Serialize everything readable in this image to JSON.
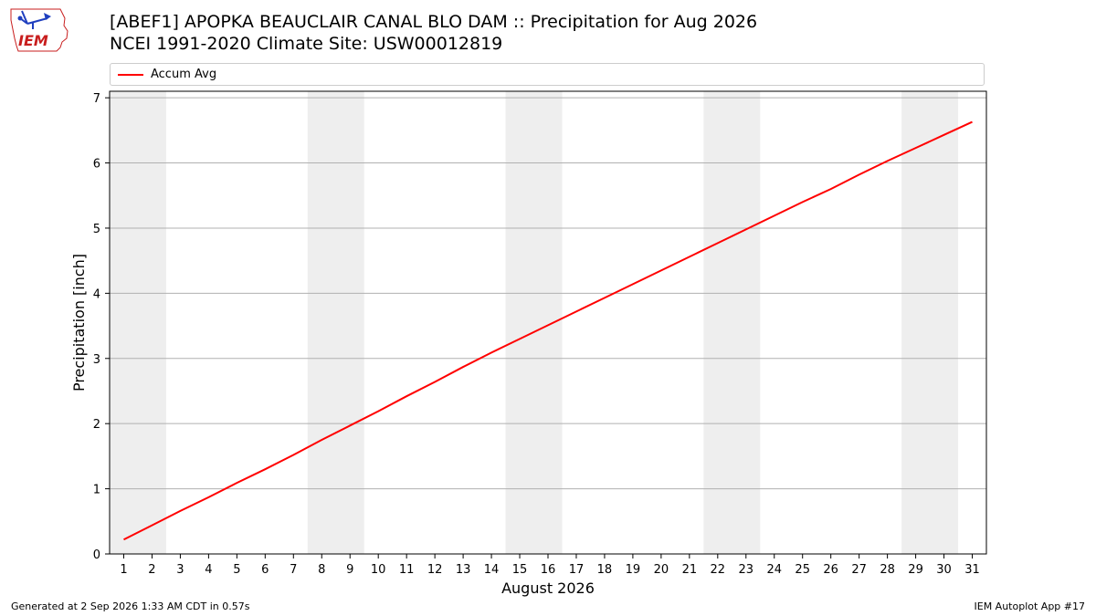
{
  "header": {
    "logo_text": "IEM",
    "title_line1": "[ABEF1] APOPKA BEAUCLAIR CANAL BLO DAM :: Precipitation for Aug 2026",
    "title_line2": "NCEI 1991-2020 Climate Site: USW00012819"
  },
  "footer": {
    "generated": "Generated at 2 Sep 2026 1:33 AM CDT in 0.57s",
    "app": "IEM Autoplot App #17"
  },
  "chart_data": {
    "type": "line",
    "title": "[ABEF1] APOPKA BEAUCLAIR CANAL BLO DAM :: Precipitation for Aug 2026",
    "subtitle": "NCEI 1991-2020 Climate Site: USW00012819",
    "xlabel": "August 2026",
    "ylabel": "Precipitation [inch]",
    "xlim": [
      0.5,
      31.5
    ],
    "ylim": [
      0,
      7.1
    ],
    "yticks": [
      0,
      1,
      2,
      3,
      4,
      5,
      6,
      7
    ],
    "xticks": [
      1,
      2,
      3,
      4,
      5,
      6,
      7,
      8,
      9,
      10,
      11,
      12,
      13,
      14,
      15,
      16,
      17,
      18,
      19,
      20,
      21,
      22,
      23,
      24,
      25,
      26,
      27,
      28,
      29,
      30,
      31
    ],
    "grid": "horizontal",
    "legend_position": "top",
    "weekend_shading": [
      [
        1,
        2
      ],
      [
        8,
        9
      ],
      [
        15,
        16
      ],
      [
        22,
        23
      ],
      [
        29,
        30
      ]
    ],
    "weekend_color": "#eeeeee",
    "series": [
      {
        "name": "Accum Avg",
        "color": "#ff0000",
        "x": [
          1,
          2,
          3,
          4,
          5,
          6,
          7,
          8,
          9,
          10,
          11,
          12,
          13,
          14,
          15,
          16,
          17,
          18,
          19,
          20,
          21,
          22,
          23,
          24,
          25,
          26,
          27,
          28,
          29,
          30,
          31
        ],
        "values": [
          0.22,
          0.44,
          0.66,
          0.87,
          1.09,
          1.3,
          1.52,
          1.75,
          1.97,
          2.19,
          2.42,
          2.64,
          2.87,
          3.09,
          3.3,
          3.51,
          3.72,
          3.93,
          4.14,
          4.35,
          4.56,
          4.77,
          4.98,
          5.19,
          5.4,
          5.6,
          5.82,
          6.03,
          6.23,
          6.43,
          6.63
        ]
      }
    ]
  }
}
